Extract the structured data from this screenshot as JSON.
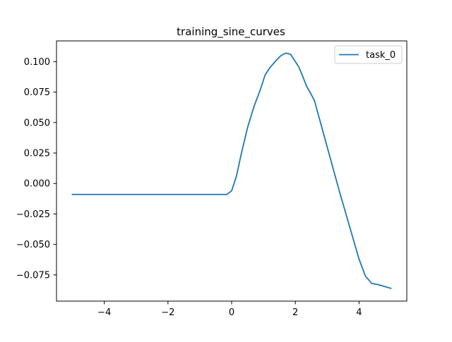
{
  "chart_data": {
    "type": "line",
    "title": "training_sine_curves",
    "xlabel": "",
    "ylabel": "",
    "xlim": [
      -5.5,
      5.5
    ],
    "ylim": [
      -0.0965,
      0.117
    ],
    "grid": false,
    "legend_placement": "top-right",
    "xticks": [
      -4,
      -2,
      0,
      2,
      4
    ],
    "xtick_labels": [
      "−4",
      "−2",
      "0",
      "2",
      "4"
    ],
    "yticks": [
      0.1,
      0.075,
      0.05,
      0.025,
      0.0,
      -0.025,
      -0.05,
      -0.075
    ],
    "ytick_labels": [
      "0.100",
      "0.075",
      "0.050",
      "0.025",
      "0.000",
      "−0.025",
      "−0.050",
      "−0.075"
    ],
    "series": [
      {
        "name": "task_0",
        "color": "#1f77b4",
        "x": [
          -5.0,
          -4.0,
          -3.0,
          -2.0,
          -1.0,
          -0.5,
          -0.15,
          0.0,
          0.15,
          0.3,
          0.5,
          0.7,
          0.9,
          1.05,
          1.2,
          1.4,
          1.55,
          1.7,
          1.85,
          2.0,
          2.1,
          2.2,
          2.35,
          2.5,
          2.6,
          2.8,
          3.0,
          3.2,
          3.4,
          3.6,
          3.8,
          4.0,
          4.2,
          4.4,
          4.6,
          5.0
        ],
        "y": [
          -0.009,
          -0.009,
          -0.009,
          -0.009,
          -0.009,
          -0.009,
          -0.009,
          -0.006,
          0.006,
          0.024,
          0.046,
          0.063,
          0.077,
          0.089,
          0.095,
          0.101,
          0.105,
          0.107,
          0.106,
          0.1,
          0.096,
          0.09,
          0.08,
          0.073,
          0.068,
          0.049,
          0.03,
          0.011,
          -0.008,
          -0.026,
          -0.044,
          -0.062,
          -0.076,
          -0.082,
          -0.083,
          -0.086
        ]
      }
    ]
  }
}
